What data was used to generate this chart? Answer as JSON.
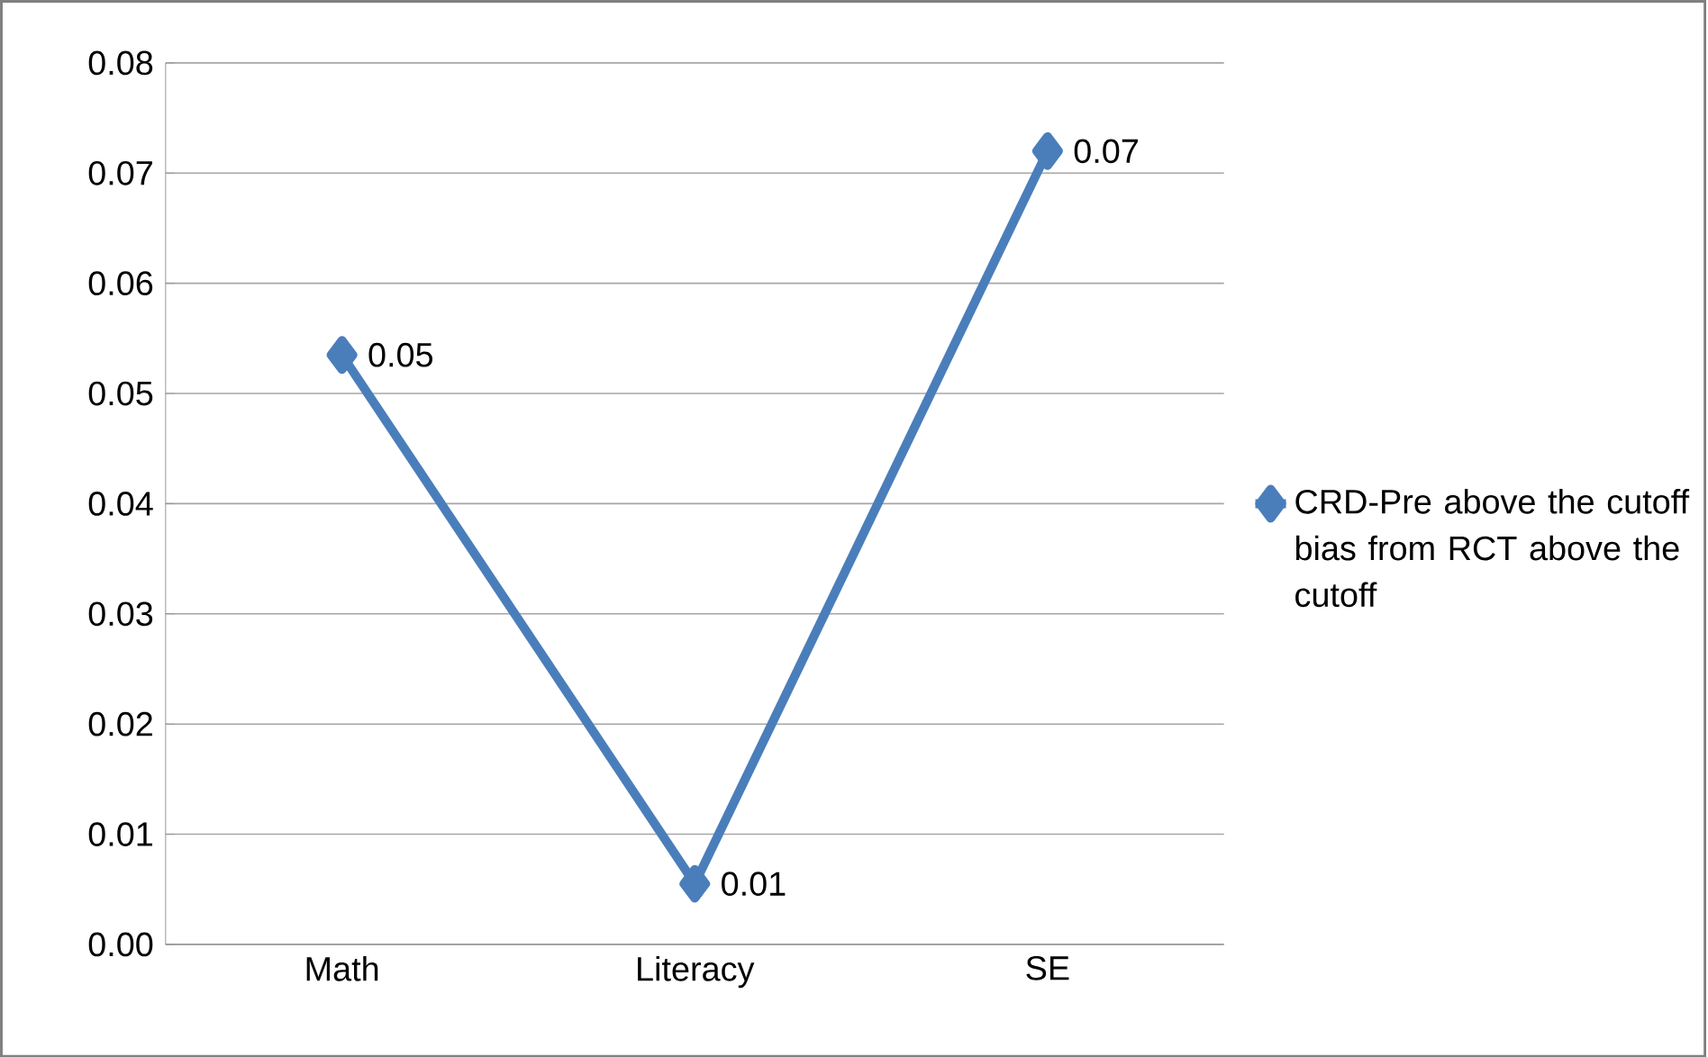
{
  "chart_data": {
    "type": "line",
    "categories": [
      "Math",
      "Literacy",
      "SE"
    ],
    "series": [
      {
        "name": "CRD-Pre above the cutoff bias from RCT above the cutoff",
        "color": "#4a7ebb",
        "values": [
          0.0535,
          0.0055,
          0.072
        ],
        "value_labels": [
          "0.05",
          "0.01",
          "0.07"
        ]
      }
    ],
    "ylim": [
      0,
      0.08
    ],
    "yticks": [
      {
        "value": 0,
        "label": "0.00"
      },
      {
        "value": 0.01,
        "label": "0.01"
      },
      {
        "value": 0.02,
        "label": "0.02"
      },
      {
        "value": 0.03,
        "label": "0.03"
      },
      {
        "value": 0.04,
        "label": "0.04"
      },
      {
        "value": 0.05,
        "label": "0.05"
      },
      {
        "value": 0.06,
        "label": "0.06"
      },
      {
        "value": 0.07,
        "label": "0.07"
      },
      {
        "value": 0.08,
        "label": "0.08"
      }
    ],
    "grid": "y",
    "legend": "right",
    "marker": "diamond",
    "line_style": "solid"
  }
}
